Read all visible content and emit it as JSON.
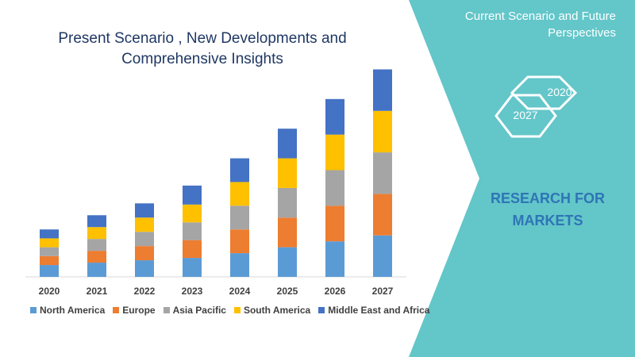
{
  "chart_data": {
    "type": "bar",
    "stacked": true,
    "title": "Present Scenario , New Developments and Comprehensive Insights",
    "xlabel": "",
    "ylabel": "",
    "categories": [
      "2020",
      "2021",
      "2022",
      "2023",
      "2024",
      "2025",
      "2026",
      "2027"
    ],
    "series": [
      {
        "name": "North America",
        "color": "#5b9bd5",
        "values": [
          2.0,
          2.4,
          2.8,
          3.2,
          4.0,
          5.0,
          6.0,
          7.0
        ]
      },
      {
        "name": "Europe",
        "color": "#ed7d31",
        "values": [
          1.5,
          2.0,
          2.4,
          3.0,
          4.0,
          5.0,
          6.0,
          7.0
        ]
      },
      {
        "name": "Asia Pacific",
        "color": "#a5a5a5",
        "values": [
          1.5,
          2.0,
          2.4,
          3.0,
          4.0,
          5.0,
          6.0,
          7.0
        ]
      },
      {
        "name": "South America",
        "color": "#ffc000",
        "values": [
          1.5,
          2.0,
          2.4,
          3.0,
          4.0,
          5.0,
          6.0,
          7.0
        ]
      },
      {
        "name": "Middle East and Africa",
        "color": "#4472c4",
        "values": [
          1.5,
          2.0,
          2.4,
          3.2,
          4.0,
          5.0,
          6.0,
          7.0
        ]
      }
    ],
    "ylim": [
      0,
      36
    ],
    "grid": false,
    "legend_position": "bottom"
  },
  "side_panel": {
    "heading": "Current Scenario and Future Perspectives",
    "hex_1": "2020",
    "hex_2": "2027",
    "brand": "RESEARCH FOR MARKETS",
    "panel_color": "#63c6c9"
  }
}
